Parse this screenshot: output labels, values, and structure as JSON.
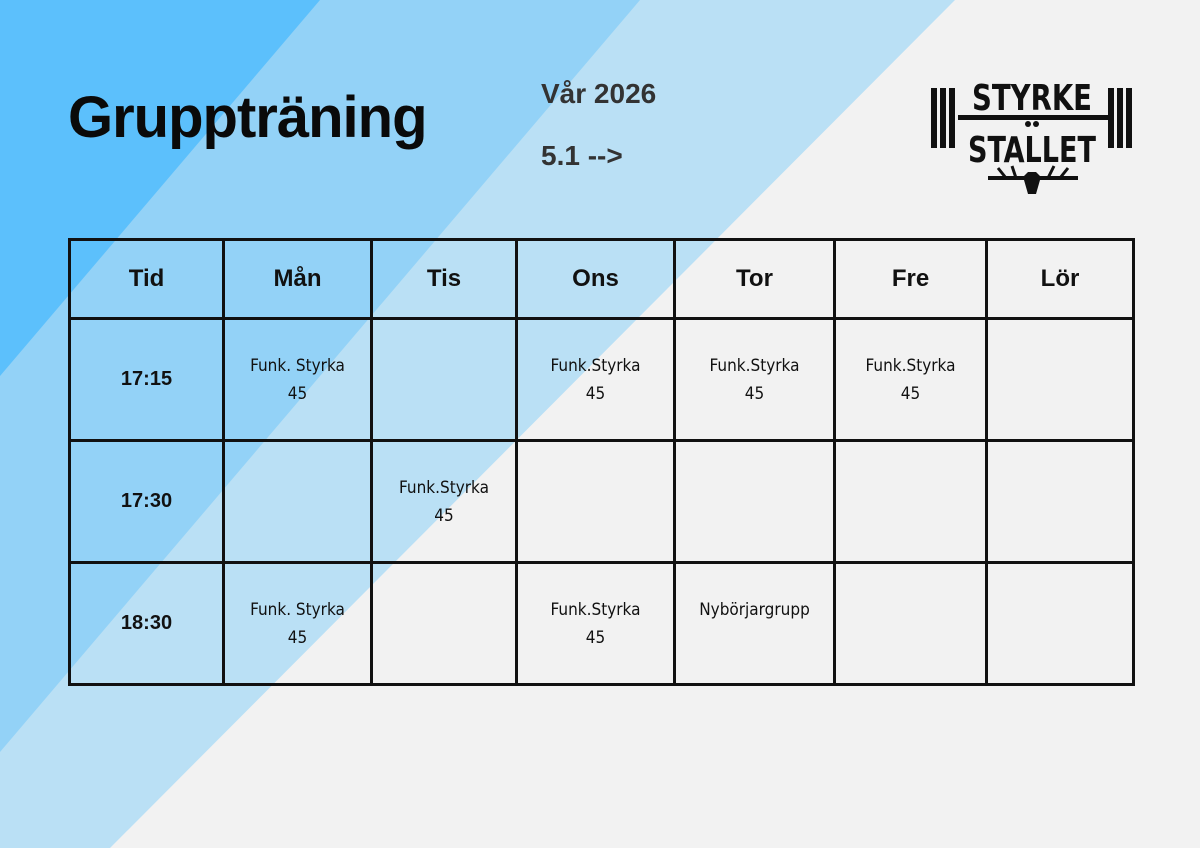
{
  "header": {
    "title": "Gruppträning",
    "season": "Vår 2026",
    "start": "5.1 -->"
  },
  "logo": {
    "text_top": "STYRKE",
    "text_bottom": "STÄLLET"
  },
  "colors": {
    "background": "#f2f2f2",
    "stripe1": "#5cc0fc",
    "stripe2": "#93d2f7",
    "stripe3": "#bae0f5"
  },
  "table": {
    "headers": [
      "Tid",
      "Mån",
      "Tis",
      "Ons",
      "Tor",
      "Fre",
      "Lör"
    ],
    "rows": [
      {
        "time": "17:15",
        "cells": [
          [
            "Funk. Styrka",
            "45"
          ],
          [],
          [
            "Funk.Styrka",
            "45"
          ],
          [
            "Funk.Styrka",
            "45"
          ],
          [
            "Funk.Styrka",
            "45"
          ],
          []
        ]
      },
      {
        "time": "17:30",
        "cells": [
          [],
          [
            "Funk.Styrka",
            "45"
          ],
          [],
          [],
          [],
          []
        ]
      },
      {
        "time": "18:30",
        "cells": [
          [
            "Funk. Styrka",
            "45"
          ],
          [],
          [
            "Funk.Styrka",
            "45"
          ],
          [
            "Nybörjargrupp"
          ],
          [],
          []
        ]
      }
    ]
  }
}
